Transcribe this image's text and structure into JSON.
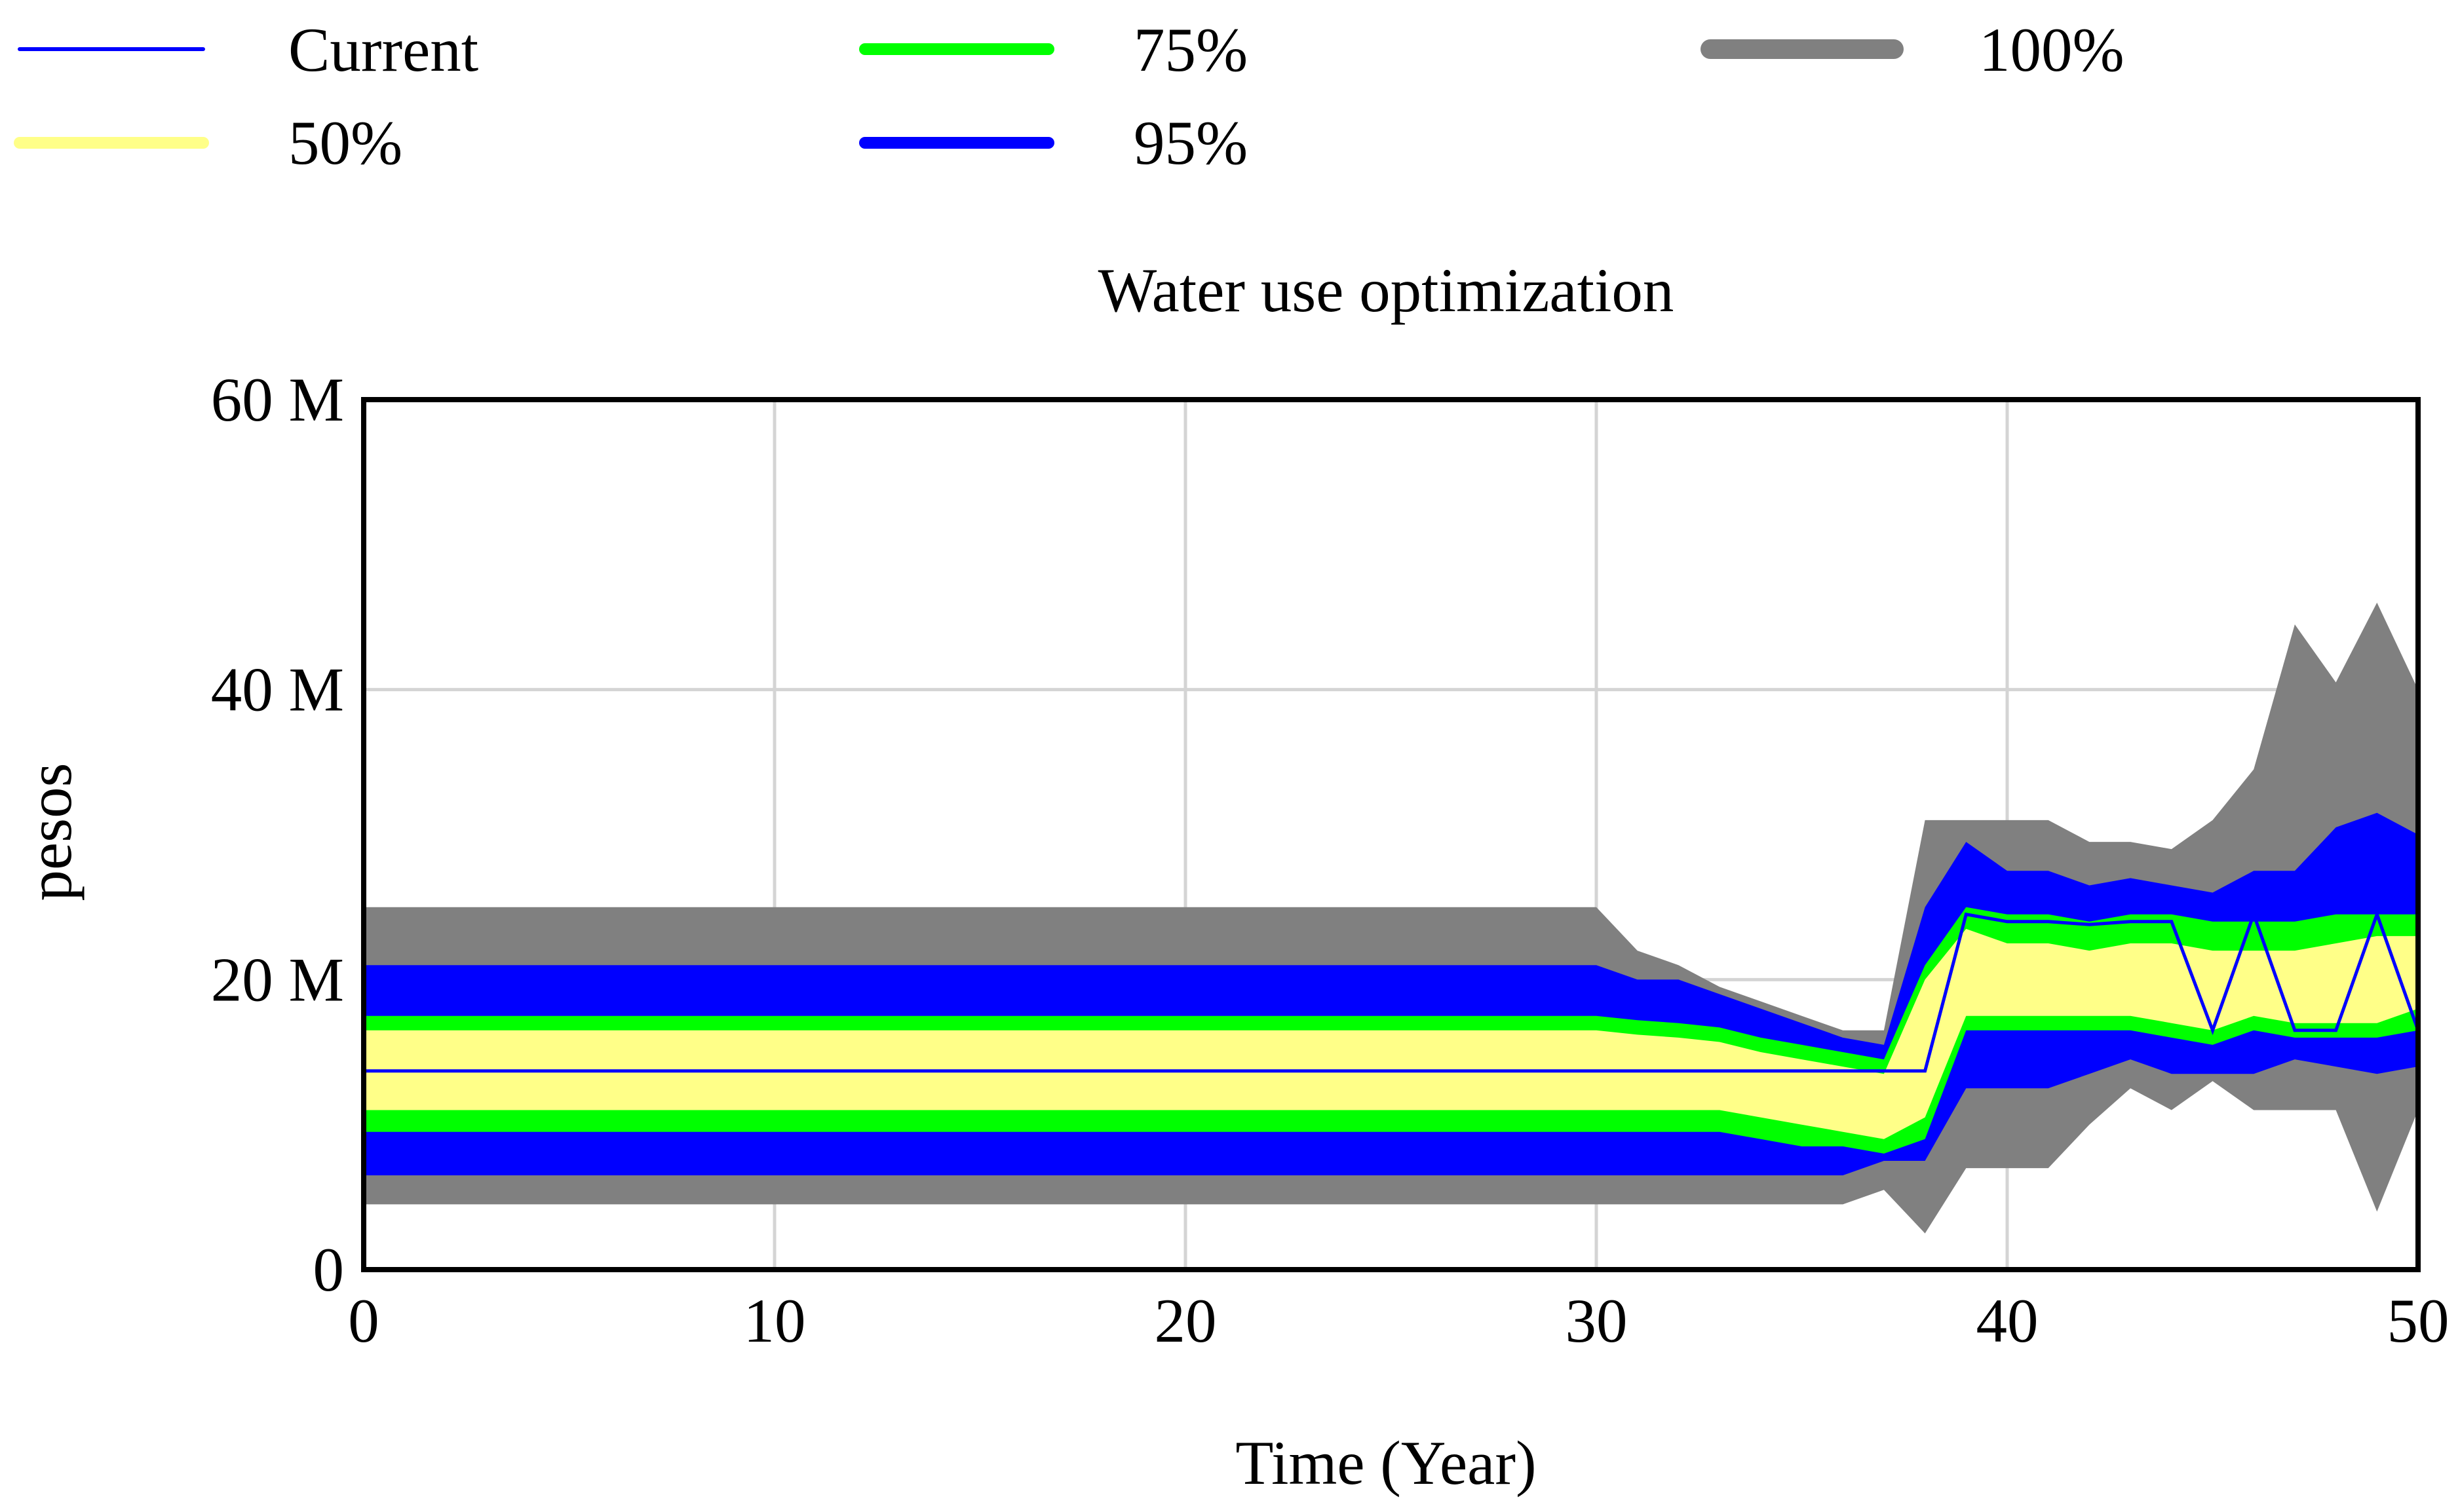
{
  "chart_data": {
    "type": "area",
    "title": "Water use optimization",
    "xlabel": "Time (Year)",
    "ylabel": "pesos",
    "xlim": [
      0,
      50
    ],
    "ylim": [
      0,
      60
    ],
    "y_unit": "M",
    "x_ticks": [
      "0",
      "10",
      "20",
      "30",
      "40",
      "50"
    ],
    "y_ticks": [
      "0",
      "20 M",
      "40 M",
      "60 M"
    ],
    "grid": true,
    "legend_position": "top",
    "colors": {
      "current": "#0000ff",
      "band50": "#ffff88",
      "band75": "#00ff00",
      "band95": "#0000ff",
      "band100": "#808080",
      "grid": "#d4d4d4"
    },
    "legend": [
      {
        "label": "Current",
        "color": "#0000ff",
        "style": "thin"
      },
      {
        "label": "75%",
        "color": "#00ff00",
        "style": "medium"
      },
      {
        "label": "100%",
        "color": "#808080",
        "style": "thick"
      },
      {
        "label": "50%",
        "color": "#ffff88",
        "style": "medium"
      },
      {
        "label": "95%",
        "color": "#0000ff",
        "style": "medium"
      }
    ],
    "bands": [
      {
        "name": "100%",
        "upper": [
          [
            0,
            25
          ],
          [
            30,
            25
          ],
          [
            31,
            22
          ],
          [
            32,
            21
          ],
          [
            33,
            19.5
          ],
          [
            34,
            18.5
          ],
          [
            35,
            17.5
          ],
          [
            36,
            16.5
          ],
          [
            37,
            16.5
          ],
          [
            38,
            31
          ],
          [
            39,
            31
          ],
          [
            40,
            31
          ],
          [
            41,
            31
          ],
          [
            42,
            29.5
          ],
          [
            43,
            29.5
          ],
          [
            44,
            29
          ],
          [
            45,
            31
          ],
          [
            46,
            34.5
          ],
          [
            47,
            44.5
          ],
          [
            48,
            40.5
          ],
          [
            49,
            46
          ],
          [
            50,
            40
          ]
        ],
        "lower": [
          [
            0,
            4.5
          ],
          [
            30,
            4.5
          ],
          [
            36,
            4.5
          ],
          [
            37,
            5.5
          ],
          [
            38,
            2.5
          ],
          [
            39,
            7
          ],
          [
            40,
            7
          ],
          [
            41,
            7
          ],
          [
            42,
            10
          ],
          [
            43,
            12.5
          ],
          [
            44,
            11
          ],
          [
            45,
            13
          ],
          [
            46,
            11
          ],
          [
            47,
            11
          ],
          [
            48,
            11
          ],
          [
            49,
            4
          ],
          [
            50,
            11
          ]
        ]
      },
      {
        "name": "95%",
        "upper": [
          [
            0,
            21
          ],
          [
            30,
            21
          ],
          [
            31,
            20
          ],
          [
            32,
            20
          ],
          [
            33,
            19
          ],
          [
            34,
            18
          ],
          [
            35,
            17
          ],
          [
            36,
            16
          ],
          [
            37,
            15.5
          ],
          [
            38,
            25
          ],
          [
            39,
            29.5
          ],
          [
            40,
            27.5
          ],
          [
            41,
            27.5
          ],
          [
            42,
            26.5
          ],
          [
            43,
            27
          ],
          [
            44,
            26.5
          ],
          [
            45,
            26
          ],
          [
            46,
            27.5
          ],
          [
            47,
            27.5
          ],
          [
            48,
            30.5
          ],
          [
            49,
            31.5
          ],
          [
            50,
            30
          ]
        ],
        "lower": [
          [
            0,
            6.5
          ],
          [
            30,
            6.5
          ],
          [
            36,
            6.5
          ],
          [
            37,
            7.5
          ],
          [
            38,
            7.5
          ],
          [
            39,
            12.5
          ],
          [
            40,
            12.5
          ],
          [
            41,
            12.5
          ],
          [
            42,
            13.5
          ],
          [
            43,
            14.5
          ],
          [
            44,
            13.5
          ],
          [
            45,
            13.5
          ],
          [
            46,
            13.5
          ],
          [
            47,
            14.5
          ],
          [
            48,
            14
          ],
          [
            49,
            13.5
          ],
          [
            50,
            14
          ]
        ]
      },
      {
        "name": "75%",
        "upper": [
          [
            0,
            17.5
          ],
          [
            30,
            17.5
          ],
          [
            31,
            17.2
          ],
          [
            32,
            17
          ],
          [
            33,
            16.7
          ],
          [
            34,
            16
          ],
          [
            35,
            15.5
          ],
          [
            36,
            15
          ],
          [
            37,
            14.5
          ],
          [
            38,
            21
          ],
          [
            39,
            25
          ],
          [
            40,
            24.5
          ],
          [
            41,
            24.5
          ],
          [
            42,
            24
          ],
          [
            43,
            24.5
          ],
          [
            44,
            24.5
          ],
          [
            45,
            24
          ],
          [
            46,
            24
          ],
          [
            47,
            24
          ],
          [
            48,
            24.5
          ],
          [
            49,
            24.5
          ],
          [
            50,
            24.5
          ]
        ],
        "lower": [
          [
            0,
            9.5
          ],
          [
            30,
            9.5
          ],
          [
            33,
            9.5
          ],
          [
            34,
            9
          ],
          [
            35,
            8.5
          ],
          [
            36,
            8.5
          ],
          [
            37,
            8
          ],
          [
            38,
            9
          ],
          [
            39,
            16.5
          ],
          [
            40,
            16.5
          ],
          [
            41,
            16.5
          ],
          [
            42,
            16.5
          ],
          [
            43,
            16.5
          ],
          [
            44,
            16
          ],
          [
            45,
            15.5
          ],
          [
            46,
            16.5
          ],
          [
            47,
            16
          ],
          [
            48,
            16
          ],
          [
            49,
            16
          ],
          [
            50,
            16.5
          ]
        ]
      },
      {
        "name": "50%",
        "upper": [
          [
            0,
            16.5
          ],
          [
            30,
            16.5
          ],
          [
            31,
            16.2
          ],
          [
            32,
            16
          ],
          [
            33,
            15.7
          ],
          [
            34,
            15
          ],
          [
            35,
            14.5
          ],
          [
            36,
            14
          ],
          [
            37,
            13.5
          ],
          [
            38,
            20
          ],
          [
            39,
            23.5
          ],
          [
            40,
            22.5
          ],
          [
            41,
            22.5
          ],
          [
            42,
            22
          ],
          [
            43,
            22.5
          ],
          [
            44,
            22.5
          ],
          [
            45,
            22
          ],
          [
            46,
            22
          ],
          [
            47,
            22
          ],
          [
            48,
            22.5
          ],
          [
            49,
            23
          ],
          [
            50,
            23
          ]
        ],
        "lower": [
          [
            0,
            11
          ],
          [
            30,
            11
          ],
          [
            33,
            11
          ],
          [
            34,
            10.5
          ],
          [
            35,
            10
          ],
          [
            36,
            9.5
          ],
          [
            37,
            9
          ],
          [
            38,
            10.5
          ],
          [
            39,
            17.5
          ],
          [
            40,
            17.5
          ],
          [
            41,
            17.5
          ],
          [
            42,
            17.5
          ],
          [
            43,
            17.5
          ],
          [
            44,
            17
          ],
          [
            45,
            16.5
          ],
          [
            46,
            17.5
          ],
          [
            47,
            17
          ],
          [
            48,
            17
          ],
          [
            49,
            17
          ],
          [
            50,
            18
          ]
        ]
      }
    ],
    "current": {
      "x": [
        0,
        30,
        38,
        39,
        40,
        41,
        42,
        43,
        44,
        45,
        46,
        47,
        48,
        49,
        50
      ],
      "y": [
        13.7,
        13.7,
        13.7,
        24.5,
        24,
        24,
        23.8,
        24,
        24,
        16.5,
        24.5,
        16.5,
        16.5,
        24.5,
        16.5
      ]
    }
  }
}
